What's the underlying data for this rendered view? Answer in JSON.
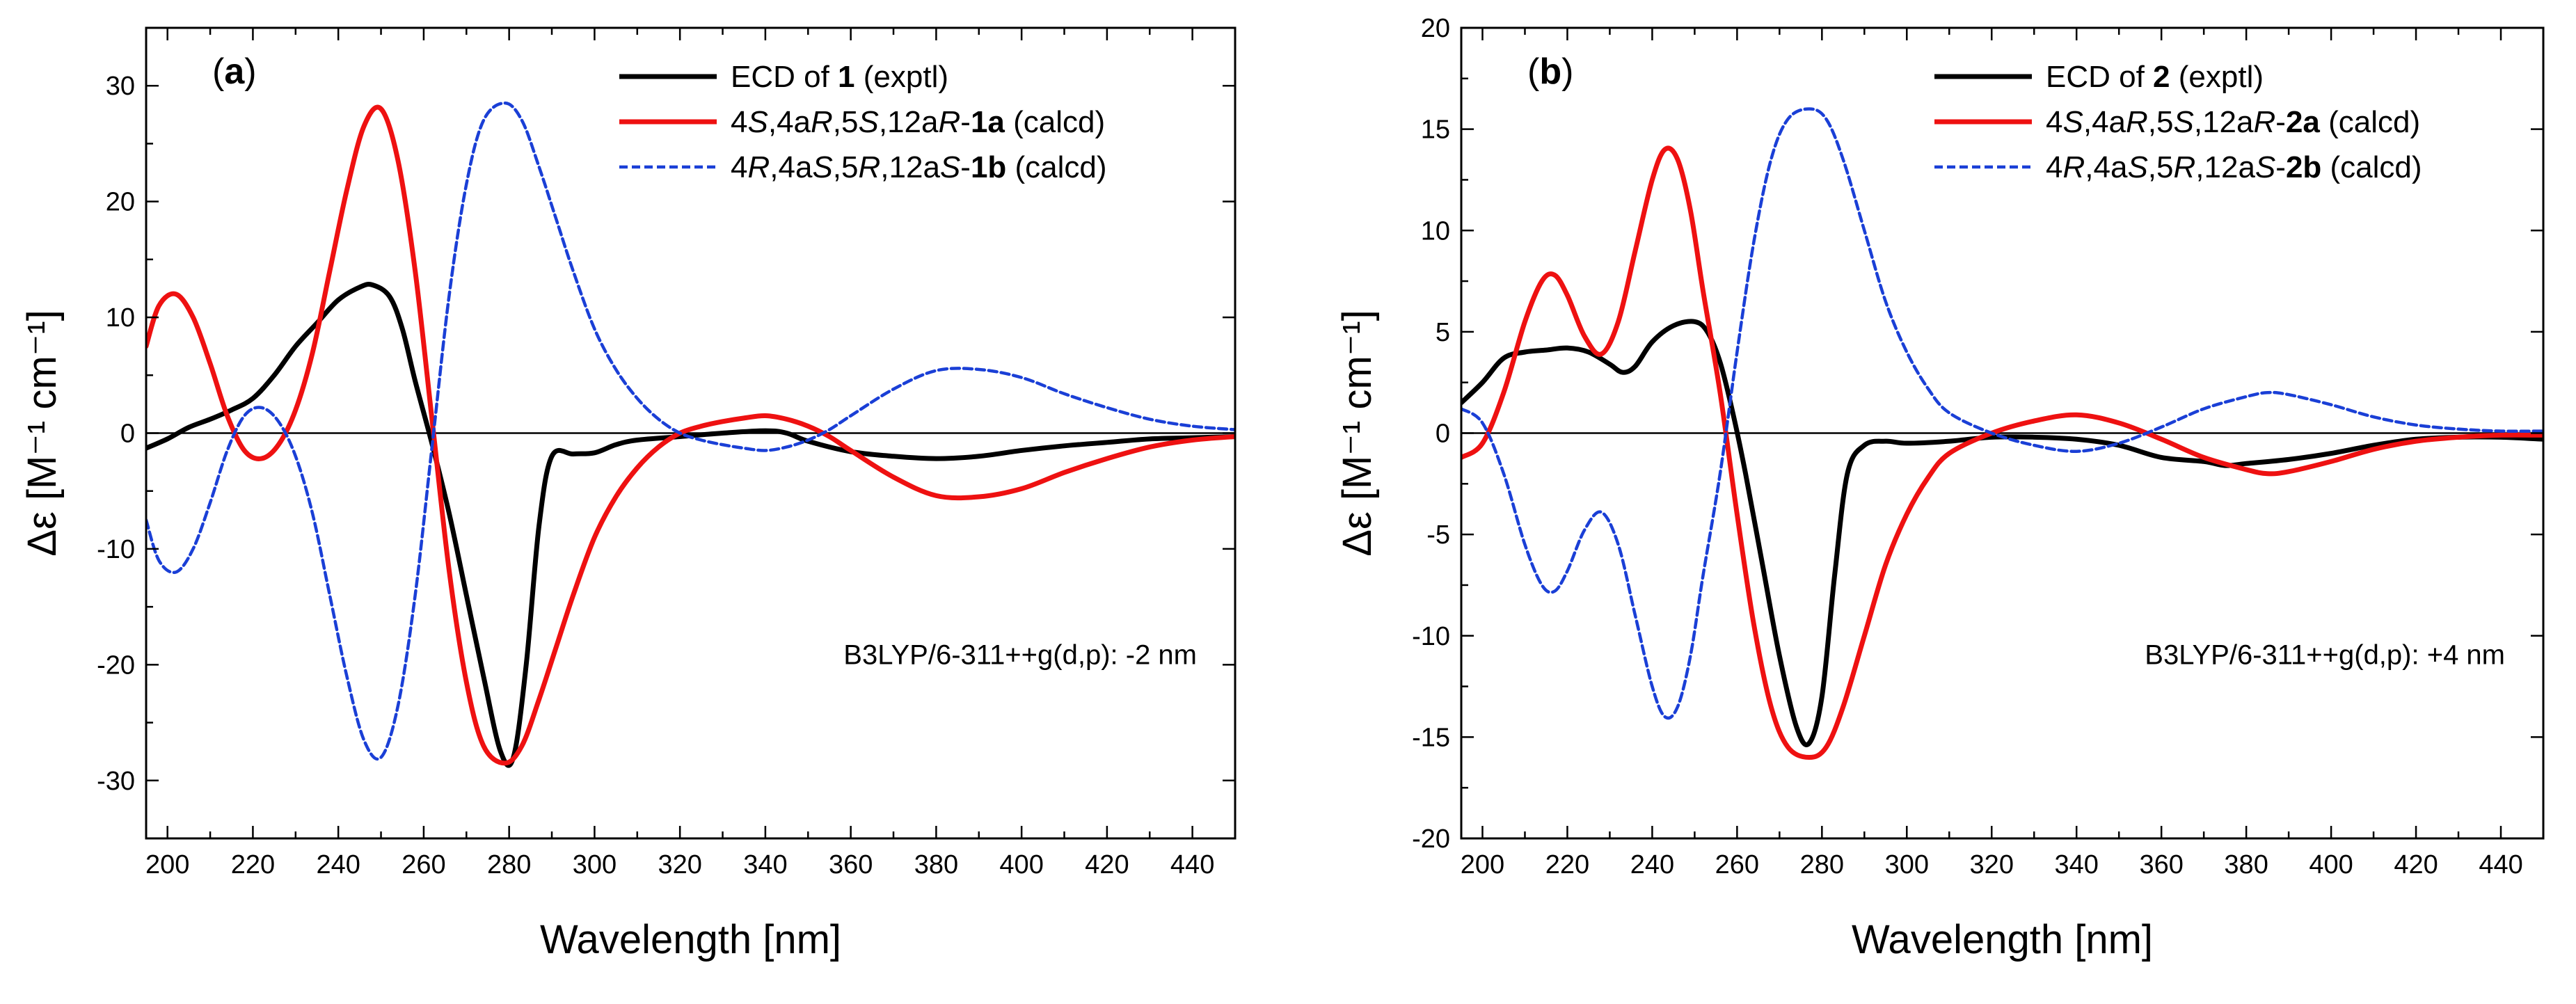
{
  "chart_data": [
    {
      "type": "line",
      "panel_label": "a",
      "xlabel": "Wavelength [nm]",
      "ylabel": "Δε [M⁻¹ cm⁻¹]",
      "xlim": [
        195,
        450
      ],
      "ylim": [
        -35,
        35
      ],
      "xticks": [
        200,
        220,
        240,
        260,
        280,
        300,
        320,
        340,
        360,
        380,
        400,
        420,
        440
      ],
      "yticks": [
        -30,
        -20,
        -10,
        0,
        10,
        20,
        30
      ],
      "legend_position": "top-right",
      "annotation": "B3LYP/6-311++g(d,p): -2 nm",
      "series": [
        {
          "name": "ECD of 1 (exptl)",
          "legend": [
            {
              "t": "ECD of "
            },
            {
              "t": "1",
              "b": true
            },
            {
              "t": " (exptl)"
            }
          ],
          "color": "#000000",
          "style": "solid",
          "x": [
            195,
            200,
            205,
            210,
            215,
            220,
            225,
            230,
            235,
            240,
            245,
            248,
            252,
            255,
            258,
            262,
            266,
            270,
            274,
            278,
            281,
            284,
            287,
            290,
            295,
            300,
            305,
            310,
            320,
            330,
            340,
            345,
            350,
            360,
            370,
            380,
            390,
            400,
            410,
            420,
            430,
            440,
            450
          ],
          "y": [
            -1.3,
            -0.5,
            0.5,
            1.2,
            2,
            3,
            5,
            7.5,
            9.5,
            11.5,
            12.6,
            12.8,
            11.8,
            9,
            4.5,
            -1,
            -7,
            -14,
            -21,
            -27.5,
            -28,
            -20,
            -8,
            -2,
            -1.8,
            -1.7,
            -1,
            -0.6,
            -0.3,
            0,
            0.2,
            0,
            -0.7,
            -1.6,
            -2,
            -2.2,
            -2,
            -1.5,
            -1.1,
            -0.8,
            -0.5,
            -0.4,
            -0.3
          ]
        },
        {
          "name": "4S,4aR,5S,12aR-1a (calcd)",
          "legend": [
            {
              "t": "4"
            },
            {
              "t": "S",
              "i": true
            },
            {
              "t": ",4a"
            },
            {
              "t": "R",
              "i": true
            },
            {
              "t": ",5"
            },
            {
              "t": "S",
              "i": true
            },
            {
              "t": ",12a"
            },
            {
              "t": "R",
              "i": true
            },
            {
              "t": "-"
            },
            {
              "t": "1a",
              "b": true
            },
            {
              "t": " (calcd)"
            }
          ],
          "color": "#ee1111",
          "style": "solid",
          "x": [
            195,
            198,
            202,
            206,
            210,
            214,
            218,
            222,
            226,
            230,
            234,
            238,
            242,
            246,
            250,
            254,
            258,
            262,
            266,
            270,
            274,
            279,
            283,
            287,
            291,
            295,
            300,
            305,
            310,
            315,
            320,
            325,
            330,
            335,
            340,
            345,
            350,
            355,
            360,
            370,
            380,
            390,
            400,
            410,
            420,
            430,
            440,
            450
          ],
          "y": [
            7.5,
            11,
            12,
            10,
            6,
            1.5,
            -1.5,
            -2.2,
            -1,
            2,
            7,
            14,
            21,
            26.5,
            28,
            23.5,
            14,
            1,
            -12,
            -21.5,
            -27,
            -28.5,
            -27,
            -23,
            -18.5,
            -14,
            -9,
            -5.5,
            -3,
            -1.2,
            0,
            0.6,
            1,
            1.3,
            1.5,
            1.2,
            0.6,
            -0.3,
            -1.5,
            -3.8,
            -5.4,
            -5.5,
            -4.8,
            -3.4,
            -2.2,
            -1.2,
            -0.6,
            -0.3
          ]
        },
        {
          "name": "4R,4aS,5R,12aS-1b (calcd)",
          "legend": [
            {
              "t": "4"
            },
            {
              "t": "R",
              "i": true
            },
            {
              "t": ",4a"
            },
            {
              "t": "S",
              "i": true
            },
            {
              "t": ",5"
            },
            {
              "t": "R",
              "i": true
            },
            {
              "t": ",12a"
            },
            {
              "t": "S",
              "i": true
            },
            {
              "t": "-"
            },
            {
              "t": "1b",
              "b": true
            },
            {
              "t": " (calcd)"
            }
          ],
          "color": "#1a3fd6",
          "style": "dashed",
          "x": [
            195,
            198,
            202,
            206,
            210,
            214,
            218,
            222,
            226,
            230,
            234,
            238,
            242,
            246,
            250,
            254,
            258,
            262,
            266,
            270,
            274,
            279,
            283,
            287,
            291,
            295,
            300,
            305,
            310,
            315,
            320,
            325,
            330,
            335,
            340,
            345,
            350,
            355,
            360,
            370,
            380,
            390,
            400,
            410,
            420,
            430,
            440,
            450
          ],
          "y": [
            -7.5,
            -11,
            -12,
            -10,
            -6,
            -1.5,
            1.5,
            2.2,
            1,
            -2,
            -7,
            -14,
            -21,
            -26.5,
            -28,
            -23.5,
            -14,
            -1,
            12,
            21.5,
            27,
            28.5,
            27,
            23,
            18.5,
            14,
            9,
            5.5,
            3,
            1.2,
            0,
            -0.6,
            -1,
            -1.3,
            -1.5,
            -1.2,
            -0.6,
            0.3,
            1.5,
            3.8,
            5.4,
            5.5,
            4.8,
            3.4,
            2.2,
            1.2,
            0.6,
            0.3
          ]
        }
      ]
    },
    {
      "type": "line",
      "panel_label": "b",
      "xlabel": "Wavelength [nm]",
      "ylabel": "Δε [M⁻¹ cm⁻¹]",
      "xlim": [
        195,
        450
      ],
      "ylim": [
        -20,
        20
      ],
      "xticks": [
        200,
        220,
        240,
        260,
        280,
        300,
        320,
        340,
        360,
        380,
        400,
        420,
        440
      ],
      "yticks": [
        -20,
        -15,
        -10,
        -5,
        0,
        5,
        10,
        15,
        20
      ],
      "legend_position": "top-right",
      "annotation": "B3LYP/6-311++g(d,p): +4 nm",
      "series": [
        {
          "name": "ECD of 2 (exptl)",
          "legend": [
            {
              "t": "ECD of "
            },
            {
              "t": "2",
              "b": true
            },
            {
              "t": " (exptl)"
            }
          ],
          "color": "#000000",
          "style": "solid",
          "x": [
            195,
            200,
            205,
            210,
            215,
            220,
            225,
            230,
            233,
            236,
            240,
            245,
            250,
            253,
            256,
            259,
            262,
            266,
            270,
            274,
            277,
            280,
            283,
            286,
            290,
            295,
            300,
            310,
            320,
            330,
            340,
            350,
            360,
            370,
            375,
            380,
            390,
            400,
            410,
            420,
            430,
            440,
            450
          ],
          "y": [
            1.5,
            2.5,
            3.7,
            4,
            4.1,
            4.2,
            4,
            3.4,
            3,
            3.3,
            4.5,
            5.3,
            5.5,
            5,
            3.5,
            1,
            -2,
            -6.5,
            -11,
            -14.5,
            -15.3,
            -13,
            -7,
            -2,
            -0.6,
            -0.4,
            -0.5,
            -0.4,
            -0.2,
            -0.2,
            -0.3,
            -0.6,
            -1.2,
            -1.4,
            -1.6,
            -1.5,
            -1.3,
            -1,
            -0.6,
            -0.3,
            -0.2,
            -0.2,
            -0.3
          ]
        },
        {
          "name": "4S,4aR,5S,12aR-2a (calcd)",
          "legend": [
            {
              "t": "4"
            },
            {
              "t": "S",
              "i": true
            },
            {
              "t": ",4a"
            },
            {
              "t": "R",
              "i": true
            },
            {
              "t": ",5"
            },
            {
              "t": "S",
              "i": true
            },
            {
              "t": ",12a"
            },
            {
              "t": "R",
              "i": true
            },
            {
              "t": "-"
            },
            {
              "t": "2a",
              "b": true
            },
            {
              "t": " (calcd)"
            }
          ],
          "color": "#ee1111",
          "style": "solid",
          "x": [
            195,
            200,
            205,
            210,
            214,
            217,
            220,
            224,
            228,
            232,
            236,
            240,
            243,
            246,
            249,
            252,
            256,
            260,
            264,
            268,
            272,
            277,
            281,
            285,
            290,
            295,
            300,
            305,
            310,
            320,
            330,
            340,
            350,
            360,
            370,
            380,
            385,
            390,
            400,
            410,
            420,
            430,
            440,
            450
          ],
          "y": [
            -1.2,
            -0.5,
            2,
            5.5,
            7.5,
            7.8,
            6.8,
            4.8,
            3.9,
            5.5,
            9,
            12.5,
            14,
            13.5,
            11,
            7,
            2,
            -4,
            -9.5,
            -13.5,
            -15.5,
            -16,
            -15.5,
            -13.5,
            -10,
            -6.5,
            -4,
            -2.2,
            -1,
            0,
            0.6,
            0.9,
            0.5,
            -0.3,
            -1.2,
            -1.8,
            -2,
            -1.9,
            -1.4,
            -0.8,
            -0.4,
            -0.2,
            -0.1,
            -0.1
          ]
        },
        {
          "name": "4R,4aS,5R,12aS-2b (calcd)",
          "legend": [
            {
              "t": "4"
            },
            {
              "t": "R",
              "i": true
            },
            {
              "t": ",4a"
            },
            {
              "t": "S",
              "i": true
            },
            {
              "t": ",5"
            },
            {
              "t": "R",
              "i": true
            },
            {
              "t": ",12a"
            },
            {
              "t": "S",
              "i": true
            },
            {
              "t": "-"
            },
            {
              "t": "2b",
              "b": true
            },
            {
              "t": " (calcd)"
            }
          ],
          "color": "#1a3fd6",
          "style": "dashed",
          "x": [
            195,
            200,
            205,
            210,
            214,
            217,
            220,
            224,
            228,
            232,
            236,
            240,
            243,
            246,
            249,
            252,
            256,
            260,
            264,
            268,
            272,
            277,
            281,
            285,
            290,
            295,
            300,
            305,
            310,
            320,
            330,
            340,
            350,
            360,
            370,
            380,
            385,
            390,
            400,
            410,
            420,
            430,
            440,
            450
          ],
          "y": [
            1.2,
            0.5,
            -2,
            -5.5,
            -7.5,
            -7.8,
            -6.8,
            -4.8,
            -3.9,
            -5.5,
            -9,
            -12.5,
            -14,
            -13.5,
            -11,
            -7,
            -2,
            4,
            9.5,
            13.5,
            15.5,
            16,
            15.5,
            13.5,
            10,
            6.5,
            4,
            2.2,
            1,
            0,
            -0.6,
            -0.9,
            -0.5,
            0.3,
            1.2,
            1.8,
            2,
            1.9,
            1.4,
            0.8,
            0.4,
            0.2,
            0.1,
            0.1
          ]
        }
      ]
    }
  ]
}
